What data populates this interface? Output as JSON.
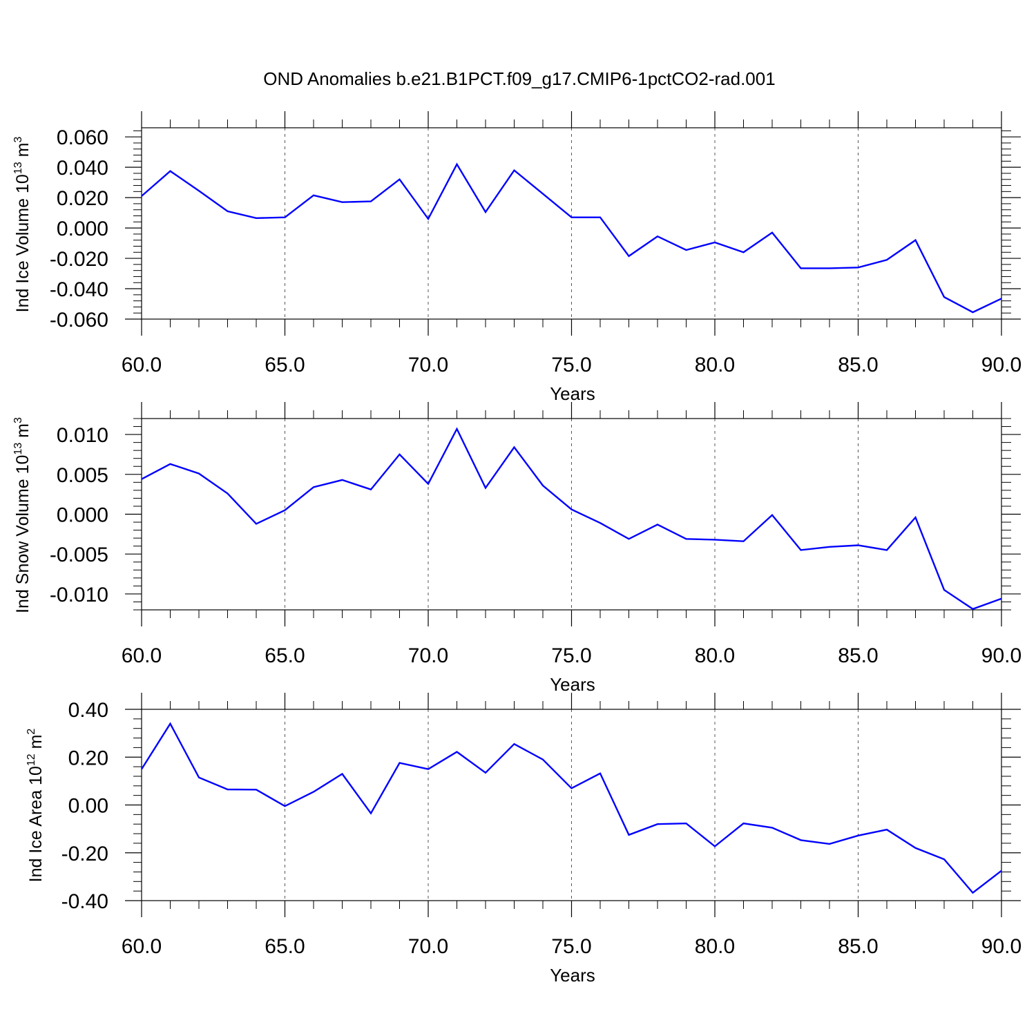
{
  "figure": {
    "title": "OND Anomalies b.e21.B1PCT.f09_g17.CMIP6-1pctCO2-rad.001",
    "line_color": "#0000ff"
  },
  "chart_data": [
    {
      "type": "line",
      "ylabel": {
        "prefix": "Ind Ice Volume 10",
        "exp1": "13",
        "mid": " m",
        "exp2": "3"
      },
      "xlabel": "Years",
      "xlim": [
        60,
        90
      ],
      "ylim": [
        -0.06,
        0.066
      ],
      "xticks": [
        60,
        65,
        70,
        75,
        80,
        85,
        90
      ],
      "xtick_labels": [
        "60.0",
        "65.0",
        "70.0",
        "75.0",
        "80.0",
        "85.0",
        "90.0"
      ],
      "yticks": [
        -0.06,
        -0.04,
        -0.02,
        0.0,
        0.02,
        0.04,
        0.06
      ],
      "ytick_labels": [
        "-0.060",
        "-0.040",
        "-0.020",
        "0.000",
        "0.020",
        "0.040",
        "0.060"
      ],
      "grid": "vertical dashed at major x ticks",
      "x": [
        60,
        61,
        62,
        63,
        64,
        65,
        66,
        67,
        68,
        69,
        70,
        71,
        72,
        73,
        74,
        75,
        76,
        77,
        78,
        79,
        80,
        81,
        82,
        83,
        84,
        85,
        86,
        87,
        88,
        89,
        90
      ],
      "series": [
        {
          "values": [
            0.021,
            0.0375,
            0.0245,
            0.011,
            0.0065,
            0.007,
            0.0215,
            0.017,
            0.0175,
            0.032,
            0.006,
            0.042,
            0.0105,
            0.038,
            0.0225,
            0.007,
            0.007,
            -0.0185,
            -0.0055,
            -0.0145,
            -0.0095,
            -0.016,
            -0.003,
            -0.0265,
            -0.0265,
            -0.026,
            -0.021,
            -0.008,
            -0.0455,
            -0.0555,
            -0.0465
          ]
        }
      ]
    },
    {
      "type": "line",
      "ylabel": {
        "prefix": "Ind Snow Volume 10",
        "exp1": "13",
        "mid": " m",
        "exp2": "3"
      },
      "xlabel": "Years",
      "xlim": [
        60,
        90
      ],
      "ylim": [
        -0.012,
        0.012
      ],
      "xticks": [
        60,
        65,
        70,
        75,
        80,
        85,
        90
      ],
      "xtick_labels": [
        "60.0",
        "65.0",
        "70.0",
        "75.0",
        "80.0",
        "85.0",
        "90.0"
      ],
      "yticks": [
        -0.01,
        -0.005,
        0.0,
        0.005,
        0.01
      ],
      "ytick_labels": [
        "-0.010",
        "-0.005",
        "0.000",
        "0.005",
        "0.010"
      ],
      "grid": "vertical dashed at major x ticks",
      "x": [
        60,
        61,
        62,
        63,
        64,
        65,
        66,
        67,
        68,
        69,
        70,
        71,
        72,
        73,
        74,
        75,
        76,
        77,
        78,
        79,
        80,
        81,
        82,
        83,
        84,
        85,
        86,
        87,
        88,
        89,
        90
      ],
      "series": [
        {
          "values": [
            0.0044,
            0.0063,
            0.0051,
            0.0026,
            -0.0012,
            0.0005,
            0.0034,
            0.0043,
            0.0031,
            0.0075,
            0.0038,
            0.0107,
            0.0033,
            0.0084,
            0.0036,
            0.0006,
            -0.0011,
            -0.0031,
            -0.0013,
            -0.0031,
            -0.0032,
            -0.0034,
            -0.0001,
            -0.0045,
            -0.0041,
            -0.0039,
            -0.0045,
            -0.0004,
            -0.0095,
            -0.0119,
            -0.0106
          ]
        }
      ]
    },
    {
      "type": "line",
      "ylabel": {
        "prefix": "Ind Ice Area 10",
        "exp1": "12",
        "mid": " m",
        "exp2": "2"
      },
      "xlabel": "Years",
      "xlim": [
        60,
        90
      ],
      "ylim": [
        -0.4,
        0.4
      ],
      "xticks": [
        60,
        65,
        70,
        75,
        80,
        85,
        90
      ],
      "xtick_labels": [
        "60.0",
        "65.0",
        "70.0",
        "75.0",
        "80.0",
        "85.0",
        "90.0"
      ],
      "yticks": [
        -0.4,
        -0.2,
        0.0,
        0.2,
        0.4
      ],
      "ytick_labels": [
        "-0.40",
        "-0.20",
        "0.00",
        "0.20",
        "0.40"
      ],
      "grid": "vertical dashed at major x ticks",
      "x": [
        60,
        61,
        62,
        63,
        64,
        65,
        66,
        67,
        68,
        69,
        70,
        71,
        72,
        73,
        74,
        75,
        76,
        77,
        78,
        79,
        80,
        81,
        82,
        83,
        84,
        85,
        86,
        87,
        88,
        89,
        90
      ],
      "series": [
        {
          "values": [
            0.15,
            0.34,
            0.115,
            0.065,
            0.064,
            -0.005,
            0.055,
            0.13,
            -0.035,
            0.176,
            0.15,
            0.222,
            0.135,
            0.255,
            0.19,
            0.07,
            0.132,
            -0.125,
            -0.08,
            -0.077,
            -0.173,
            -0.077,
            -0.095,
            -0.147,
            -0.163,
            -0.128,
            -0.103,
            -0.18,
            -0.227,
            -0.367,
            -0.275
          ]
        }
      ]
    }
  ]
}
